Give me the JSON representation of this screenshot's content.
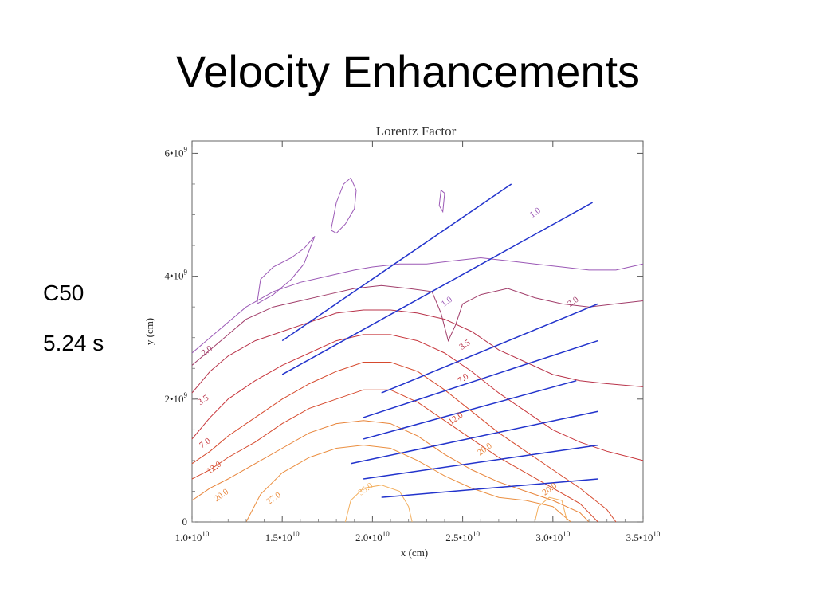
{
  "slide": {
    "title": "Velocity Enhancements",
    "side_texts": [
      "C50",
      "5.24 s"
    ]
  },
  "colors": {
    "vector": "#2233cc",
    "contour_1": "#9b59b6",
    "contour_2": "#a13d6a",
    "contour_3_5": "#b8334a",
    "contour_7": "#c8353b",
    "contour_12": "#d64a2e",
    "contour_20": "#e8843a",
    "contour_27": "#eb8f40",
    "contour_35": "#f3b060"
  },
  "chart_data": {
    "type": "contour",
    "title": "Lorentz Factor",
    "xlabel": "x (cm)",
    "ylabel": "y (cm)",
    "xlim": [
      10000000000.0,
      35000000000.0
    ],
    "ylim": [
      0,
      6200000000.0
    ],
    "x_ticks": [
      {
        "value": 10000000000.0,
        "mant": "1.0•10",
        "exp": "10"
      },
      {
        "value": 15000000000.0,
        "mant": "1.5•10",
        "exp": "10"
      },
      {
        "value": 20000000000.0,
        "mant": "2.0•10",
        "exp": "10"
      },
      {
        "value": 25000000000.0,
        "mant": "2.5•10",
        "exp": "10"
      },
      {
        "value": 30000000000.0,
        "mant": "3.0•10",
        "exp": "10"
      },
      {
        "value": 35000000000.0,
        "mant": "3.5•10",
        "exp": "10"
      }
    ],
    "y_ticks": [
      {
        "value": 0,
        "mant": "0",
        "exp": ""
      },
      {
        "value": 2000000000.0,
        "mant": "2•10",
        "exp": "9"
      },
      {
        "value": 4000000000.0,
        "mant": "4•10",
        "exp": "9"
      },
      {
        "value": 6000000000.0,
        "mant": "6•10",
        "exp": "9"
      }
    ],
    "contour_labels": [
      {
        "text": "1.0",
        "x": 29100000000.0,
        "y": 5000000000.0,
        "level": "1.0"
      },
      {
        "text": "1.0",
        "x": 24200000000.0,
        "y": 3550000000.0,
        "level": "1.0"
      },
      {
        "text": "2.0",
        "x": 31200000000.0,
        "y": 3550000000.0,
        "level": "2.0"
      },
      {
        "text": "2.0",
        "x": 10900000000.0,
        "y": 2750000000.0,
        "level": "2.0"
      },
      {
        "text": "3.5",
        "x": 25200000000.0,
        "y": 2850000000.0,
        "level": "3.5"
      },
      {
        "text": "3.5",
        "x": 10700000000.0,
        "y": 1950000000.0,
        "level": "3.5"
      },
      {
        "text": "7.0",
        "x": 25100000000.0,
        "y": 2300000000.0,
        "level": "7.0"
      },
      {
        "text": "7.0",
        "x": 10800000000.0,
        "y": 1250000000.0,
        "level": "7.0"
      },
      {
        "text": "12.0",
        "x": 24700000000.0,
        "y": 1650000000.0,
        "level": "12.0"
      },
      {
        "text": "12.0",
        "x": 11300000000.0,
        "y": 850000000.0,
        "level": "12.0"
      },
      {
        "text": "20.0",
        "x": 26300000000.0,
        "y": 1150000000.0,
        "level": "20.0"
      },
      {
        "text": "20.0",
        "x": 11700000000.0,
        "y": 400000000.0,
        "level": "20.0"
      },
      {
        "text": "27.0",
        "x": 14600000000.0,
        "y": 350000000.0,
        "level": "27.0"
      },
      {
        "text": "35.0",
        "x": 19700000000.0,
        "y": 500000000.0,
        "level": "35.0"
      },
      {
        "text": "20.0",
        "x": 29900000000.0,
        "y": 500000000.0,
        "level": "20.0"
      }
    ],
    "contours": [
      {
        "level": "1.0",
        "points": [
          [
            10000000000.0,
            2750000000.0
          ],
          [
            11000000000.0,
            3000000000.0
          ],
          [
            12000000000.0,
            3250000000.0
          ],
          [
            13000000000.0,
            3500000000.0
          ],
          [
            14500000000.0,
            3750000000.0
          ],
          [
            16000000000.0,
            3900000000.0
          ],
          [
            17500000000.0,
            4000000000.0
          ],
          [
            19000000000.0,
            4100000000.0
          ],
          [
            20000000000.0,
            4150000000.0
          ],
          [
            21500000000.0,
            4200000000.0
          ],
          [
            23000000000.0,
            4200000000.0
          ],
          [
            24500000000.0,
            4250000000.0
          ],
          [
            26000000000.0,
            4300000000.0
          ],
          [
            27500000000.0,
            4250000000.0
          ],
          [
            29000000000.0,
            4200000000.0
          ],
          [
            30500000000.0,
            4150000000.0
          ],
          [
            32000000000.0,
            4100000000.0
          ],
          [
            33500000000.0,
            4100000000.0
          ],
          [
            35000000000.0,
            4200000000.0
          ]
        ]
      },
      {
        "level": "1.0",
        "points": [
          [
            13600000000.0,
            3550000000.0
          ],
          [
            13800000000.0,
            3950000000.0
          ],
          [
            14500000000.0,
            4150000000.0
          ],
          [
            15500000000.0,
            4300000000.0
          ],
          [
            16200000000.0,
            4450000000.0
          ],
          [
            16800000000.0,
            4650000000.0
          ],
          [
            16200000000.0,
            4200000000.0
          ],
          [
            15500000000.0,
            3950000000.0
          ],
          [
            14500000000.0,
            3700000000.0
          ],
          [
            13600000000.0,
            3550000000.0
          ]
        ]
      },
      {
        "level": "1.0",
        "points": [
          [
            17700000000.0,
            4750000000.0
          ],
          [
            18000000000.0,
            5200000000.0
          ],
          [
            18400000000.0,
            5500000000.0
          ],
          [
            18800000000.0,
            5600000000.0
          ],
          [
            19100000000.0,
            5400000000.0
          ],
          [
            19000000000.0,
            5100000000.0
          ],
          [
            18500000000.0,
            4850000000.0
          ],
          [
            18000000000.0,
            4700000000.0
          ],
          [
            17700000000.0,
            4750000000.0
          ]
        ]
      },
      {
        "level": "1.0",
        "points": [
          [
            23700000000.0,
            5150000000.0
          ],
          [
            23800000000.0,
            5400000000.0
          ],
          [
            24000000000.0,
            5350000000.0
          ],
          [
            23900000000.0,
            5050000000.0
          ],
          [
            23700000000.0,
            5150000000.0
          ]
        ]
      },
      {
        "level": "2.0",
        "points": [
          [
            10000000000.0,
            2550000000.0
          ],
          [
            11000000000.0,
            2800000000.0
          ],
          [
            12000000000.0,
            3050000000.0
          ],
          [
            13000000000.0,
            3300000000.0
          ],
          [
            14500000000.0,
            3500000000.0
          ],
          [
            16000000000.0,
            3600000000.0
          ],
          [
            17500000000.0,
            3700000000.0
          ],
          [
            19000000000.0,
            3800000000.0
          ],
          [
            20500000000.0,
            3850000000.0
          ],
          [
            22000000000.0,
            3800000000.0
          ],
          [
            23300000000.0,
            3750000000.0
          ],
          [
            23800000000.0,
            3400000000.0
          ],
          [
            24200000000.0,
            2950000000.0
          ],
          [
            24600000000.0,
            3200000000.0
          ],
          [
            25000000000.0,
            3550000000.0
          ],
          [
            26000000000.0,
            3700000000.0
          ],
          [
            27500000000.0,
            3800000000.0
          ],
          [
            29000000000.0,
            3650000000.0
          ],
          [
            30500000000.0,
            3550000000.0
          ],
          [
            32000000000.0,
            3500000000.0
          ],
          [
            33500000000.0,
            3550000000.0
          ],
          [
            35000000000.0,
            3600000000.0
          ]
        ]
      },
      {
        "level": "3.5",
        "points": [
          [
            10000000000.0,
            2100000000.0
          ],
          [
            11000000000.0,
            2450000000.0
          ],
          [
            12000000000.0,
            2700000000.0
          ],
          [
            13500000000.0,
            2950000000.0
          ],
          [
            15000000000.0,
            3100000000.0
          ],
          [
            16500000000.0,
            3250000000.0
          ],
          [
            18000000000.0,
            3400000000.0
          ],
          [
            19500000000.0,
            3450000000.0
          ],
          [
            21000000000.0,
            3450000000.0
          ],
          [
            22500000000.0,
            3400000000.0
          ],
          [
            24000000000.0,
            3300000000.0
          ],
          [
            25500000000.0,
            3100000000.0
          ],
          [
            27000000000.0,
            2800000000.0
          ],
          [
            28500000000.0,
            2600000000.0
          ],
          [
            30000000000.0,
            2400000000.0
          ],
          [
            31500000000.0,
            2300000000.0
          ],
          [
            33000000000.0,
            2250000000.0
          ],
          [
            35000000000.0,
            2200000000.0
          ]
        ]
      },
      {
        "level": "7.0",
        "points": [
          [
            10000000000.0,
            1350000000.0
          ],
          [
            11000000000.0,
            1700000000.0
          ],
          [
            12000000000.0,
            2000000000.0
          ],
          [
            13500000000.0,
            2300000000.0
          ],
          [
            15000000000.0,
            2550000000.0
          ],
          [
            16500000000.0,
            2750000000.0
          ],
          [
            18000000000.0,
            2950000000.0
          ],
          [
            19500000000.0,
            3050000000.0
          ],
          [
            21000000000.0,
            3050000000.0
          ],
          [
            22500000000.0,
            2950000000.0
          ],
          [
            24000000000.0,
            2750000000.0
          ],
          [
            25500000000.0,
            2450000000.0
          ],
          [
            27000000000.0,
            2100000000.0
          ],
          [
            28500000000.0,
            1800000000.0
          ],
          [
            30000000000.0,
            1500000000.0
          ],
          [
            31500000000.0,
            1300000000.0
          ],
          [
            33000000000.0,
            1150000000.0
          ],
          [
            35000000000.0,
            1000000000.0
          ]
        ]
      },
      {
        "level": "12.0",
        "points": [
          [
            10000000000.0,
            950000000.0
          ],
          [
            11000000000.0,
            1150000000.0
          ],
          [
            12000000000.0,
            1400000000.0
          ],
          [
            13500000000.0,
            1700000000.0
          ],
          [
            15000000000.0,
            2000000000.0
          ],
          [
            16500000000.0,
            2250000000.0
          ],
          [
            18000000000.0,
            2450000000.0
          ],
          [
            19500000000.0,
            2600000000.0
          ],
          [
            21000000000.0,
            2600000000.0
          ],
          [
            22500000000.0,
            2450000000.0
          ],
          [
            24000000000.0,
            2150000000.0
          ],
          [
            25500000000.0,
            1800000000.0
          ],
          [
            27000000000.0,
            1450000000.0
          ],
          [
            28500000000.0,
            1150000000.0
          ],
          [
            30000000000.0,
            850000000.0
          ],
          [
            31500000000.0,
            550000000.0
          ],
          [
            33000000000.0,
            200000000.0
          ],
          [
            33500000000.0,
            0
          ]
        ]
      },
      {
        "level": "12.0",
        "points": [
          [
            10000000000.0,
            700000000.0
          ],
          [
            11000000000.0,
            850000000.0
          ],
          [
            12000000000.0,
            1050000000.0
          ],
          [
            13500000000.0,
            1300000000.0
          ],
          [
            15000000000.0,
            1600000000.0
          ],
          [
            16500000000.0,
            1850000000.0
          ],
          [
            18000000000.0,
            2000000000.0
          ],
          [
            19500000000.0,
            2150000000.0
          ],
          [
            21000000000.0,
            2150000000.0
          ],
          [
            22500000000.0,
            1950000000.0
          ],
          [
            24000000000.0,
            1650000000.0
          ],
          [
            25500000000.0,
            1350000000.0
          ],
          [
            27000000000.0,
            1050000000.0
          ],
          [
            28500000000.0,
            800000000.0
          ],
          [
            30000000000.0,
            550000000.0
          ],
          [
            31500000000.0,
            300000000.0
          ],
          [
            32500000000.0,
            0
          ]
        ]
      },
      {
        "level": "20.0",
        "points": [
          [
            10000000000.0,
            350000000.0
          ],
          [
            11000000000.0,
            550000000.0
          ],
          [
            12000000000.0,
            700000000.0
          ],
          [
            13500000000.0,
            950000000.0
          ],
          [
            15000000000.0,
            1200000000.0
          ],
          [
            16500000000.0,
            1450000000.0
          ],
          [
            18000000000.0,
            1600000000.0
          ],
          [
            19500000000.0,
            1650000000.0
          ],
          [
            21000000000.0,
            1600000000.0
          ],
          [
            22500000000.0,
            1400000000.0
          ],
          [
            24000000000.0,
            1100000000.0
          ],
          [
            25500000000.0,
            850000000.0
          ],
          [
            27000000000.0,
            650000000.0
          ],
          [
            28500000000.0,
            500000000.0
          ],
          [
            30000000000.0,
            350000000.0
          ],
          [
            31500000000.0,
            150000000.0
          ],
          [
            32000000000.0,
            0
          ]
        ]
      },
      {
        "level": "27.0",
        "points": [
          [
            13000000000.0,
            0
          ],
          [
            13800000000.0,
            450000000.0
          ],
          [
            15000000000.0,
            800000000.0
          ],
          [
            16500000000.0,
            1050000000.0
          ],
          [
            18000000000.0,
            1200000000.0
          ],
          [
            19500000000.0,
            1250000000.0
          ],
          [
            21000000000.0,
            1200000000.0
          ],
          [
            22500000000.0,
            1000000000.0
          ],
          [
            24000000000.0,
            750000000.0
          ],
          [
            25500000000.0,
            550000000.0
          ],
          [
            27000000000.0,
            400000000.0
          ],
          [
            28500000000.0,
            350000000.0
          ],
          [
            30000000000.0,
            250000000.0
          ],
          [
            31000000000.0,
            0
          ]
        ]
      },
      {
        "level": "35.0",
        "points": [
          [
            18500000000.0,
            0
          ],
          [
            18800000000.0,
            350000000.0
          ],
          [
            19500000000.0,
            550000000.0
          ],
          [
            20500000000.0,
            600000000.0
          ],
          [
            21500000000.0,
            500000000.0
          ],
          [
            22000000000.0,
            250000000.0
          ],
          [
            22200000000.0,
            0
          ]
        ]
      },
      {
        "level": "35.0",
        "points": [
          [
            29000000000.0,
            0
          ],
          [
            29200000000.0,
            250000000.0
          ],
          [
            29800000000.0,
            400000000.0
          ],
          [
            30500000000.0,
            350000000.0
          ],
          [
            30800000000.0,
            0
          ]
        ]
      }
    ],
    "vectors": [
      [
        [
          15000000000.0,
          2950000000.0
        ],
        [
          27700000000.0,
          5500000000.0
        ]
      ],
      [
        [
          15000000000.0,
          2400000000.0
        ],
        [
          32200000000.0,
          5200000000.0
        ]
      ],
      [
        [
          20500000000.0,
          2100000000.0
        ],
        [
          32500000000.0,
          3550000000.0
        ]
      ],
      [
        [
          19500000000.0,
          1700000000.0
        ],
        [
          32500000000.0,
          2950000000.0
        ]
      ],
      [
        [
          19500000000.0,
          1350000000.0
        ],
        [
          31300000000.0,
          2300000000.0
        ]
      ],
      [
        [
          18800000000.0,
          950000000.0
        ],
        [
          32500000000.0,
          1800000000.0
        ]
      ],
      [
        [
          19500000000.0,
          700000000.0
        ],
        [
          32500000000.0,
          1250000000.0
        ]
      ],
      [
        [
          20500000000.0,
          400000000.0
        ],
        [
          32500000000.0,
          700000000.0
        ]
      ]
    ]
  }
}
